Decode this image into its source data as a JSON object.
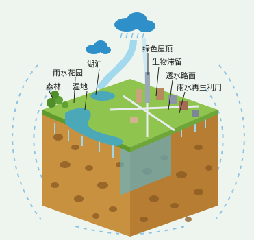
{
  "labels": {
    "green_roof": "绿色屋顶",
    "bioretention": "生物滞留",
    "permeable_pavement": "透水路面",
    "rainwater_reuse": "雨水再生利用",
    "lake": "湖泊",
    "rain_garden": "雨水花园",
    "wetland": "湿地",
    "forest": "森林"
  },
  "colors": {
    "grass": "#8fc44f",
    "soil": "#c8913f",
    "soil_dark": "#a86e2d",
    "water": "#4aa8b8",
    "cloud": "#2f8fc9",
    "background": "#eef5ee"
  }
}
